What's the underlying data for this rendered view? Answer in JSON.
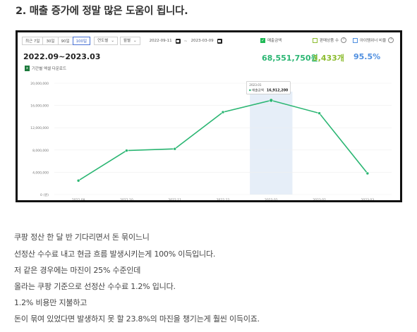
{
  "heading": "2. 매출 증가에 정말 많은 도움이 됩니다.",
  "toolbar": {
    "range_buttons": [
      "최근 7일",
      "30일",
      "90일",
      "100일"
    ],
    "active_range": "100일",
    "unit_select": "연도별",
    "period_select": "월별",
    "date_from": "2022-09-11",
    "date_separator": "~",
    "date_to": "2023-03-09"
  },
  "legend": {
    "sales_amount": "매출금액",
    "units_sold": "판매상품 수",
    "item_winner_ratio": "아이템위너 비율"
  },
  "summary": {
    "period": "2022.09~2023.03",
    "sales_amount": "68,551,750원",
    "units_sold": "3,433개",
    "ratio": "95.5%"
  },
  "download_label": "기간별 엑셀 다운로드",
  "colors": {
    "line": "#2bb673",
    "sales": "#2bb673",
    "units": "#8cbc2f",
    "ratio": "#4f8fe0",
    "highlight": "#e6eef8"
  },
  "chart_data": {
    "type": "line",
    "categories": [
      "2022.09",
      "2022.10",
      "2022.11",
      "2022.12",
      "2023.01",
      "2023.02",
      "2023.03"
    ],
    "series": [
      {
        "name": "매출금액",
        "values": [
          2500000,
          7900000,
          8200000,
          14800000,
          16912200,
          14600000,
          3800000
        ]
      }
    ],
    "y_ticks": [
      "0 (원)",
      "4,000,000",
      "8,000,000",
      "12,000,000",
      "16,000,000",
      "20,000,000"
    ],
    "ylim": [
      0,
      20000000
    ],
    "highlight_category": "2023.01",
    "tooltip": {
      "title": "2023.01",
      "label": "매출금액",
      "value": "16,912,200"
    }
  },
  "body_lines": [
    "쿠팡 정산 한 달 반 기다리면서 돈 묶이느니",
    "선정산 수수료 내고 현금 흐름 발생시키는게 100% 이득입니다.",
    "저 같은 경우에는 마진이 25% 수준인데",
    "올라는 쿠팡 기준으로 선정산 수수료 1.2% 입니다.",
    "1.2% 비용만 지불하고",
    "돈이 묶여 있었다면 발생하지 못 할 23.8%의 마진을 챙기는게 훨씬 이득이죠."
  ]
}
